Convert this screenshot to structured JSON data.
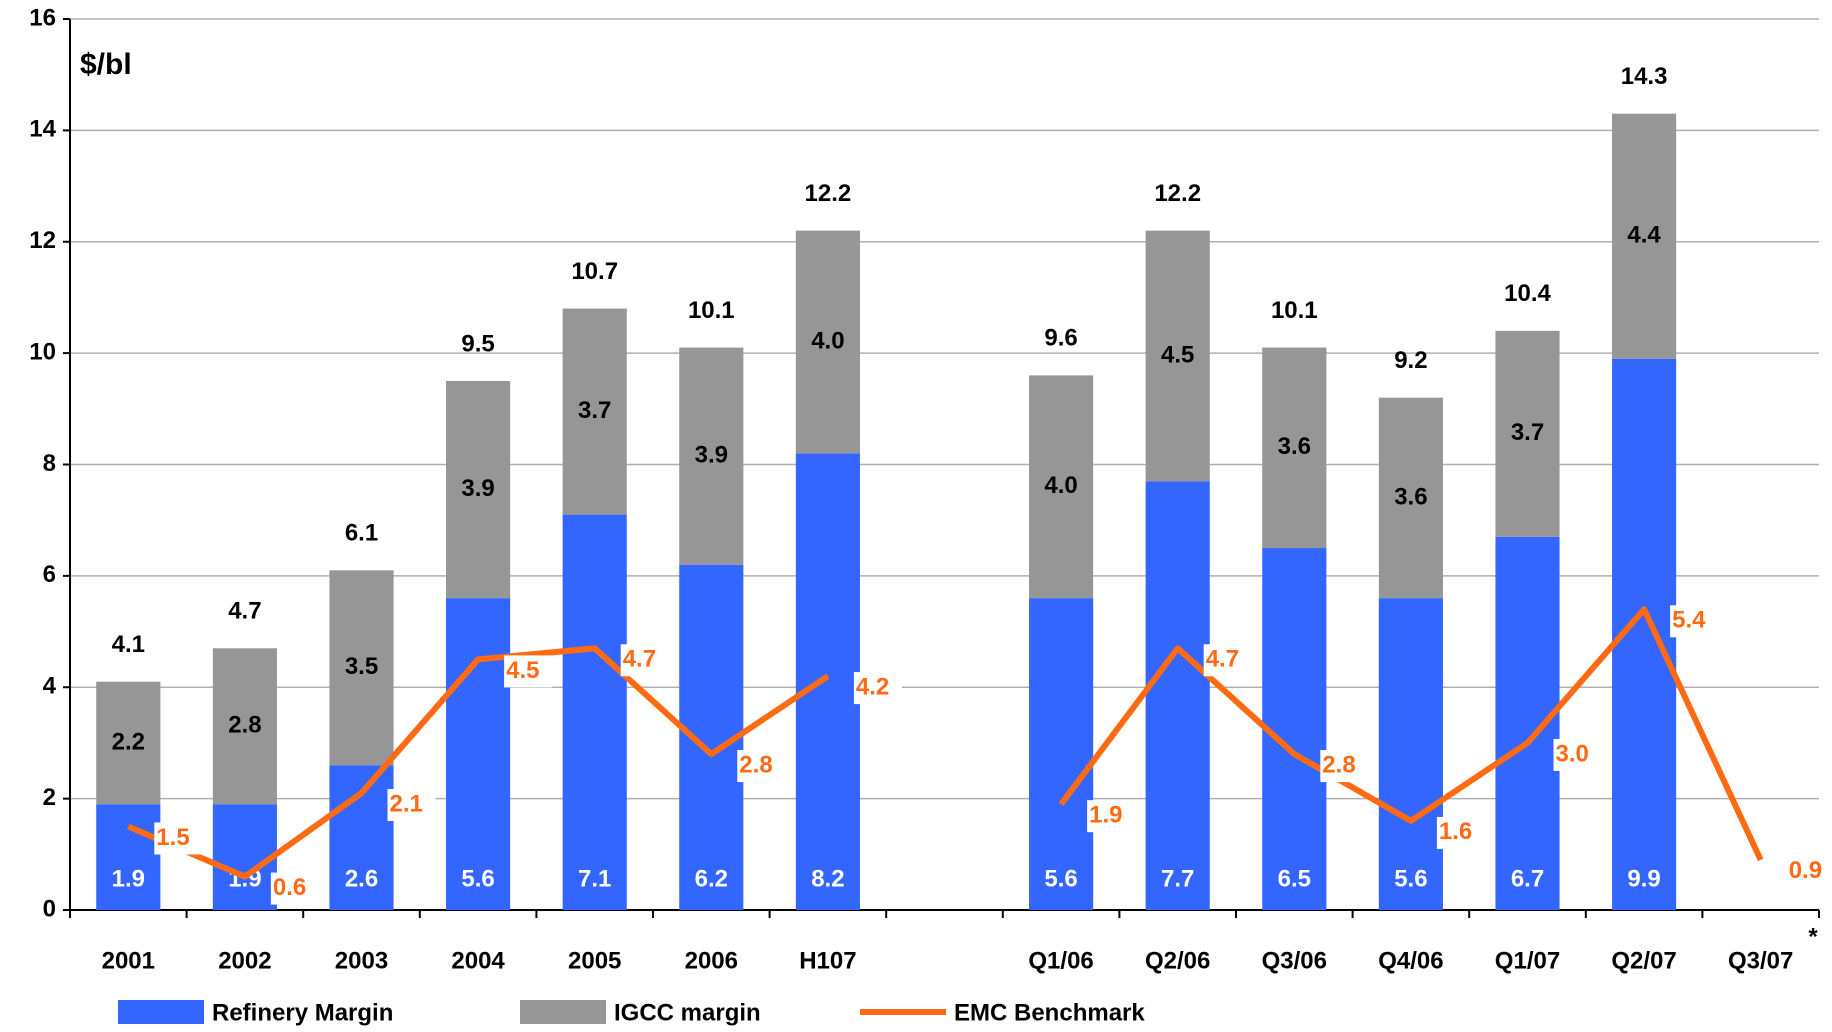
{
  "chart_data": {
    "type": "stacked_bar_line",
    "y_label": "$/bl",
    "footnote_mark": "*",
    "categories": [
      "2001",
      "2002",
      "2003",
      "2004",
      "2005",
      "2006",
      "H107",
      null,
      "Q1/06",
      "Q2/06",
      "Q3/06",
      "Q4/06",
      "Q1/07",
      "Q2/07",
      "Q3/07"
    ],
    "series": [
      {
        "name": "Refinery Margin",
        "color": "#3366ff",
        "kind": "bar",
        "values": [
          1.9,
          1.9,
          2.6,
          5.6,
          7.1,
          6.2,
          8.2,
          null,
          5.6,
          7.7,
          6.5,
          5.6,
          6.7,
          9.9,
          null
        ]
      },
      {
        "name": "IGCC margin",
        "color": "#969696",
        "kind": "bar",
        "values": [
          2.2,
          2.8,
          3.5,
          3.9,
          3.7,
          3.9,
          4.0,
          null,
          4.0,
          4.5,
          3.6,
          3.6,
          3.7,
          4.4,
          null
        ],
        "value_labels": [
          "2.2",
          "2.8",
          "3.5",
          "3.9",
          "3.7",
          "3.9",
          "4.0",
          null,
          "4.0",
          "4.5",
          "3.6",
          "3.6",
          "3.7",
          "4.4",
          null
        ]
      },
      {
        "name": "EMC Benchmark",
        "color": "#ff6a13",
        "kind": "line",
        "values": [
          1.5,
          0.6,
          2.1,
          4.5,
          4.7,
          2.8,
          4.2,
          null,
          1.9,
          4.7,
          2.8,
          1.6,
          3.0,
          5.4,
          0.9
        ],
        "value_labels": [
          "1.5",
          "0.6",
          "2.1",
          "4.5",
          "4.7",
          "2.8",
          "4.2",
          null,
          "1.9",
          "4.7",
          "2.8",
          "1.6",
          "3.0",
          "5.4",
          "0.9"
        ]
      }
    ],
    "totals": [
      4.1,
      4.7,
      6.1,
      9.5,
      10.7,
      10.1,
      12.2,
      null,
      9.6,
      12.2,
      10.1,
      9.2,
      10.4,
      14.3,
      null
    ],
    "ylim": [
      0,
      16
    ],
    "yticks": [
      0,
      2,
      4,
      6,
      8,
      10,
      12,
      14,
      16
    ],
    "grid": true,
    "legend": "bottom"
  }
}
